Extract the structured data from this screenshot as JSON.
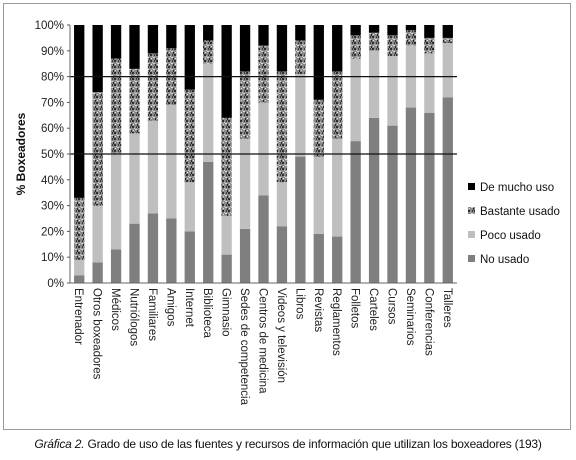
{
  "chart_data": {
    "type": "bar",
    "stacked": true,
    "ylabel": "% Boxeadores",
    "xlabel": "",
    "ylim": [
      0,
      100
    ],
    "y_tick_labels": [
      "0%",
      "10%",
      "20%",
      "30%",
      "40%",
      "50%",
      "60%",
      "70%",
      "80%",
      "90%",
      "100%"
    ],
    "reference_lines": [
      50,
      80
    ],
    "grid": false,
    "legend_position": "right",
    "categories": [
      "Entrenador",
      "Otros boxeadores",
      "Médicos",
      "Nutriólogos",
      "Familiares",
      "Amigos",
      "Internet",
      "Biblioteca",
      "Gimnasio",
      "Sedes de competencia",
      "Centros de medicina",
      "Videos y televisión",
      "Libros",
      "Revistas",
      "Reglamentos",
      "Folletos",
      "Carteles",
      "Cursos",
      "Seminarios",
      "Conferencias",
      "Talleres"
    ],
    "series": [
      {
        "name": "No usado",
        "color": "#7f7f7f",
        "pattern": "solid",
        "values": [
          3,
          8,
          13,
          23,
          27,
          25,
          20,
          47,
          11,
          21,
          34,
          22,
          49,
          19,
          18,
          55,
          64,
          61,
          68,
          66,
          72
        ]
      },
      {
        "name": "Poco usado",
        "color": "#bfbfbf",
        "pattern": "solid",
        "values": [
          6,
          22,
          37,
          35,
          36,
          44,
          19,
          38,
          15,
          35,
          36,
          17,
          32,
          30,
          38,
          32,
          26,
          27,
          24,
          23,
          21
        ]
      },
      {
        "name": "Bastante usado",
        "color": "#6e6e6e",
        "pattern": "speckle",
        "values": [
          24,
          44,
          37,
          25,
          26,
          22,
          36,
          9,
          38,
          26,
          22,
          43,
          13,
          22,
          26,
          9,
          7,
          8,
          6,
          6,
          2
        ]
      },
      {
        "name": "De mucho uso",
        "color": "#000000",
        "pattern": "solid",
        "values": [
          67,
          26,
          13,
          17,
          11,
          9,
          25,
          6,
          36,
          18,
          8,
          18,
          6,
          29,
          18,
          4,
          3,
          4,
          2,
          5,
          5
        ]
      }
    ],
    "legend_order": [
      "De mucho uso",
      "Bastante usado",
      "Poco usado",
      "No usado"
    ]
  },
  "caption": {
    "label": "Gráfica 2.",
    "text": " Grado de uso de las fuentes y recursos de información que utilizan los boxeadores (193)"
  }
}
